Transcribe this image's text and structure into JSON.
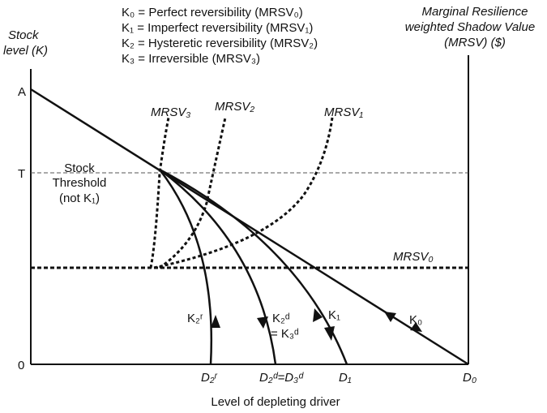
{
  "legend": {
    "k0": "K₀ = Perfect reversibility (MRSV₀)",
    "k1": "K₁ = Imperfect reversibility (MRSV₁)",
    "k2": "K₂ = Hysteretic reversibility (MRSV₂)",
    "k3": "K₃ = Irreversible (MRSV₃)"
  },
  "axes": {
    "y_title_line1": "Stock",
    "y_title_line2": "level (K)",
    "right_title_line1": "Marginal Resilience",
    "right_title_line2": "weighted Shadow Value",
    "right_title_line3": "(MRSV) ($)",
    "x_title": "Level of depleting driver",
    "y_ticks": {
      "a": "A",
      "t": "T",
      "zero": "0"
    }
  },
  "threshold_label": {
    "line1": "Stock",
    "line2": "Threshold",
    "line3": "(not K₁)"
  },
  "curve_labels": {
    "mrsv3": "MRSV₃",
    "mrsv2": "MRSV₂",
    "mrsv1": "MRSV₁",
    "mrsv0": "MRSV₀",
    "k2r": "K₂ʳ",
    "k2d": "K₂ᵈ",
    "k3d": "= K₃ᵈ",
    "k1": "K₁",
    "k0": "K₀"
  },
  "x_ticks": {
    "d2r": "D₂ʳ",
    "d2d_d3d": "D₂ᵈ=D₃ᵈ",
    "d1": "D₁",
    "d0": "D₀"
  },
  "colors": {
    "ink": "#111111",
    "threshold_line": "#555555"
  }
}
